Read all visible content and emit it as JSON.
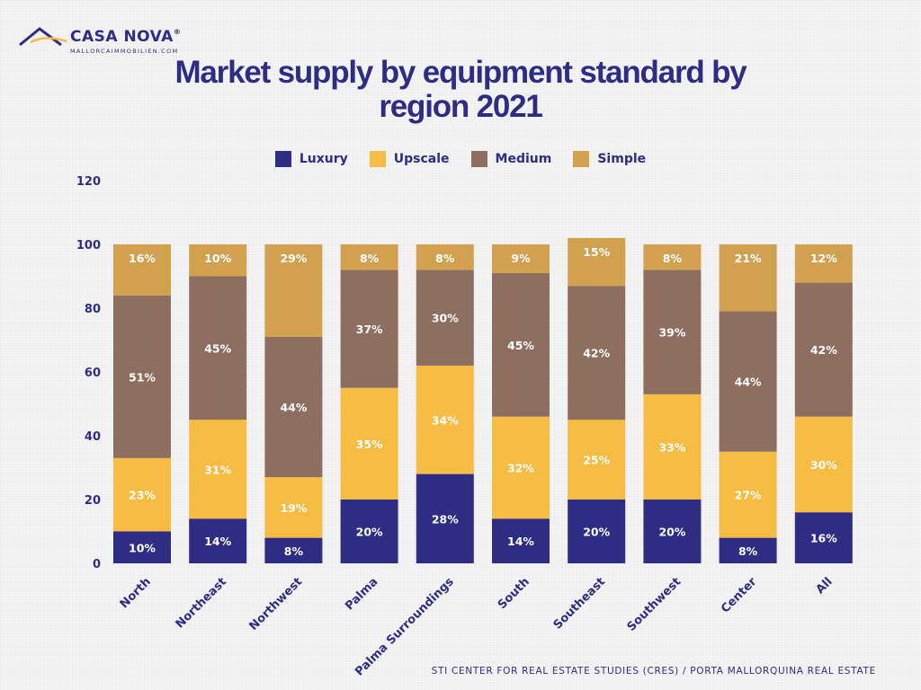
{
  "brand": {
    "name": "CASA NOVA",
    "registered": "®",
    "website": "MALLORCAIMMOBILIEN.COM"
  },
  "title_lines": [
    "Market supply by equipment standard by",
    "region 2021"
  ],
  "source": "STI CENTER FOR REAL ESTATE STUDIES (CRES) / PORTA MALLORQUINA REAL ESTATE",
  "colors": {
    "Luxury": "#2f2d83",
    "Upscale": "#f6bc44",
    "Medium": "#8d6e5f",
    "Simple": "#d1a150",
    "axis_text": "#2f2d83",
    "label_text": "#ffffff"
  },
  "chart_data": {
    "type": "bar",
    "stacked": true,
    "title": "Market supply by equipment standard by region 2021",
    "categories": [
      "North",
      "Northeast",
      "Northwest",
      "Palma",
      "Palma Surroundings",
      "South",
      "Southeast",
      "Southwest",
      "Center",
      "All"
    ],
    "series": [
      {
        "name": "Luxury",
        "values": [
          10,
          14,
          8,
          20,
          28,
          14,
          20,
          20,
          8,
          16
        ]
      },
      {
        "name": "Upscale",
        "values": [
          23,
          31,
          19,
          35,
          34,
          32,
          25,
          33,
          27,
          30
        ]
      },
      {
        "name": "Medium",
        "values": [
          51,
          45,
          44,
          37,
          30,
          45,
          42,
          39,
          44,
          42
        ]
      },
      {
        "name": "Simple",
        "values": [
          16,
          10,
          29,
          8,
          8,
          9,
          15,
          8,
          21,
          12
        ]
      }
    ],
    "value_suffix": "%",
    "ylim": [
      0,
      120
    ],
    "yticks": [
      0,
      20,
      40,
      60,
      80,
      100,
      120
    ],
    "xlabel": "",
    "ylabel": "",
    "grid": false,
    "legend_position": "top-center"
  }
}
